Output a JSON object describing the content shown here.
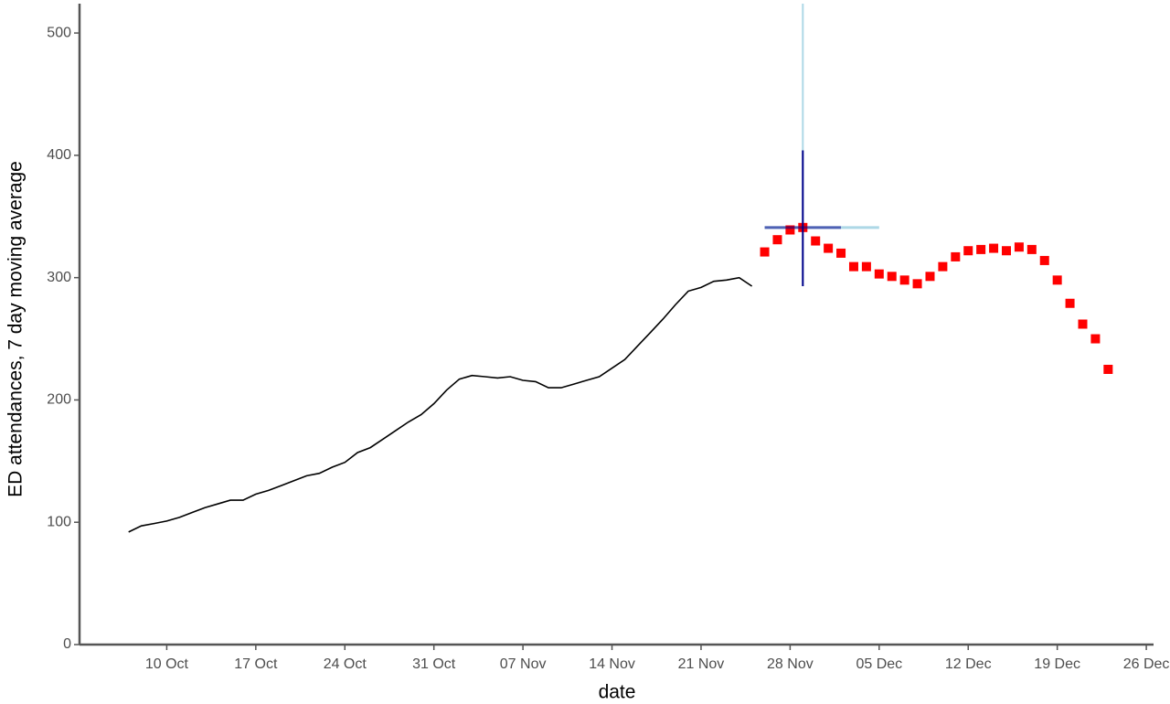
{
  "chart_data": {
    "type": "line",
    "x_label": "date",
    "y_label": "ED attendances, 7 day moving average",
    "xlim": [
      "03 Oct",
      "27 Dec"
    ],
    "xticks": [
      "10 Oct",
      "17 Oct",
      "24 Oct",
      "31 Oct",
      "07 Nov",
      "14 Nov",
      "21 Nov",
      "28 Nov",
      "05 Dec",
      "12 Dec",
      "19 Dec",
      "26 Dec"
    ],
    "ylim": [
      0,
      524
    ],
    "yticks": [
      0,
      100,
      200,
      300,
      400,
      500
    ],
    "series": [
      {
        "style": "line",
        "color": "#000000",
        "x": [
          "07 Oct",
          "08 Oct",
          "09 Oct",
          "10 Oct",
          "11 Oct",
          "12 Oct",
          "13 Oct",
          "14 Oct",
          "15 Oct",
          "16 Oct",
          "17 Oct",
          "18 Oct",
          "19 Oct",
          "20 Oct",
          "21 Oct",
          "22 Oct",
          "23 Oct",
          "24 Oct",
          "25 Oct",
          "26 Oct",
          "27 Oct",
          "28 Oct",
          "29 Oct",
          "30 Oct",
          "31 Oct",
          "01 Nov",
          "02 Nov",
          "03 Nov",
          "04 Nov",
          "05 Nov",
          "06 Nov",
          "07 Nov",
          "08 Nov",
          "09 Nov",
          "10 Nov",
          "11 Nov",
          "12 Nov",
          "13 Nov",
          "14 Nov",
          "15 Nov",
          "16 Nov",
          "17 Nov",
          "18 Nov",
          "19 Nov",
          "20 Nov",
          "21 Nov",
          "22 Nov",
          "23 Nov",
          "24 Nov",
          "25 Nov"
        ],
        "values": [
          92,
          97,
          99,
          101,
          104,
          108,
          112,
          115,
          118,
          118,
          123,
          126,
          130,
          134,
          138,
          140,
          145,
          149,
          157,
          161,
          168,
          175,
          182,
          188,
          197,
          208,
          217,
          220,
          219,
          218,
          219,
          216,
          215,
          210,
          210,
          213,
          216,
          219,
          226,
          233,
          244,
          255,
          266,
          278,
          289,
          292,
          297,
          298,
          300,
          293
        ]
      },
      {
        "style": "points",
        "color": "#ff0000",
        "x": [
          "26 Nov",
          "27 Nov",
          "28 Nov",
          "29 Nov",
          "30 Nov",
          "01 Dec",
          "02 Dec",
          "03 Dec",
          "04 Dec",
          "05 Dec",
          "06 Dec",
          "07 Dec",
          "08 Dec",
          "09 Dec",
          "10 Dec",
          "11 Dec",
          "12 Dec",
          "13 Dec",
          "14 Dec",
          "15 Dec",
          "16 Dec",
          "17 Dec",
          "18 Dec",
          "19 Dec",
          "20 Dec",
          "21 Dec",
          "22 Dec",
          "23 Dec"
        ],
        "values": [
          321,
          331,
          339,
          341,
          330,
          324,
          320,
          309,
          309,
          303,
          301,
          298,
          295,
          301,
          309,
          317,
          322,
          323,
          324,
          322,
          325,
          323,
          314,
          298,
          279,
          262,
          250,
          225
        ]
      }
    ],
    "crosshair": {
      "x": "29 Nov",
      "y": 341,
      "y_outer": [
        293,
        524
      ],
      "y_inner": [
        293,
        404
      ],
      "x_outer": [
        "26 Nov",
        "05 Dec"
      ],
      "x_inner": [
        "26 Nov",
        "02 Dec"
      ],
      "outer_color": "#add8e6",
      "inner_color": "#00008b"
    }
  }
}
